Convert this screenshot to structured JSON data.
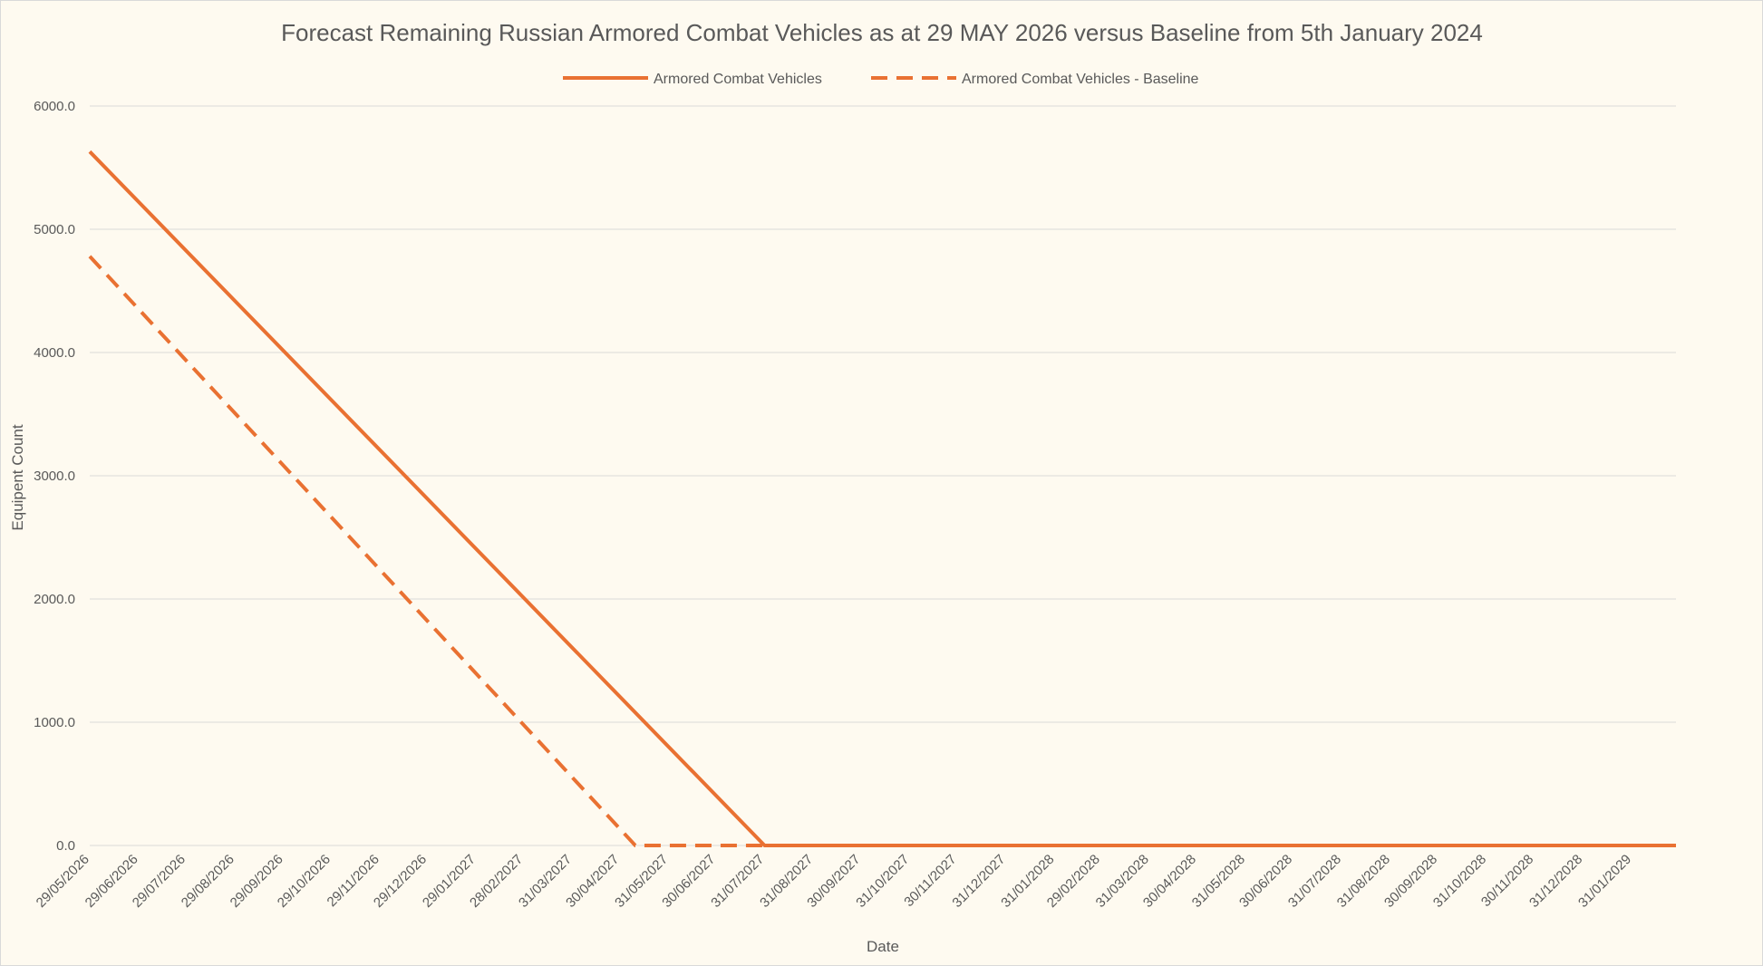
{
  "chart_data": {
    "type": "line",
    "title": "Forecast Remaining Russian Armored Combat Vehicles as at 29 MAY 2026 versus Baseline from 5th January 2024",
    "xlabel": "Date",
    "ylabel": "Equipent Count",
    "ylim": [
      0,
      6000
    ],
    "y_ticks": [
      "0.0",
      "1000.0",
      "2000.0",
      "3000.0",
      "4000.0",
      "5000.0",
      "6000.0"
    ],
    "x_ticks": [
      "29/05/2026",
      "29/06/2026",
      "29/07/2026",
      "29/08/2026",
      "29/09/2026",
      "29/10/2026",
      "29/11/2026",
      "29/12/2026",
      "29/01/2027",
      "28/02/2027",
      "31/03/2027",
      "30/04/2027",
      "31/05/2027",
      "30/06/2027",
      "31/07/2027",
      "31/08/2027",
      "30/09/2027",
      "31/10/2027",
      "30/11/2027",
      "31/12/2027",
      "31/01/2028",
      "29/02/2028",
      "31/03/2028",
      "30/04/2028",
      "31/05/2028",
      "30/06/2028",
      "31/07/2028",
      "31/08/2028",
      "30/09/2028",
      "31/10/2028",
      "30/11/2028",
      "31/12/2028",
      "31/01/2029"
    ],
    "x_range": [
      "29/05/2026",
      "28/02/2029"
    ],
    "grid": true,
    "legend_position": "top",
    "color": "#e97132",
    "series": [
      {
        "name": "Armored Combat Vehicles",
        "style": "solid",
        "points": [
          {
            "x": "29/05/2026",
            "y": 5630
          },
          {
            "x": "31/07/2027",
            "y": 0
          },
          {
            "x": "28/02/2029",
            "y": 0
          }
        ]
      },
      {
        "name": "Armored Combat Vehicles - Baseline",
        "style": "dashed",
        "points": [
          {
            "x": "29/05/2026",
            "y": 4780
          },
          {
            "x": "10/05/2027",
            "y": 0
          },
          {
            "x": "31/07/2027",
            "y": 0
          }
        ]
      }
    ]
  }
}
